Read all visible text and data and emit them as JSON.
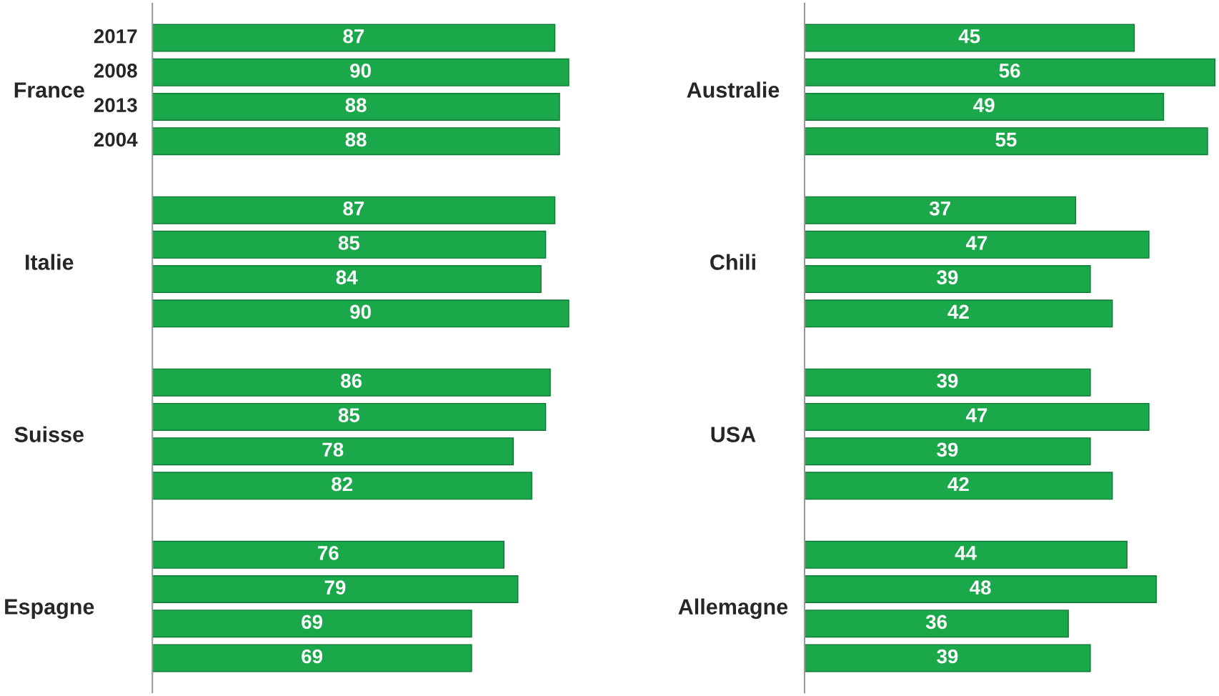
{
  "chart_data": [
    {
      "type": "bar",
      "orientation": "horizontal",
      "categories": [
        "France",
        "Italie",
        "Suisse",
        "Espagne"
      ],
      "data_labels": true,
      "tick_labels": "y",
      "series": [
        {
          "name": "2017",
          "color": "#1aa84a",
          "values": [
            87,
            87,
            86,
            76
          ]
        },
        {
          "name": "2008",
          "color": "#1aa84a",
          "values": [
            90,
            85,
            85,
            79
          ]
        },
        {
          "name": "2013",
          "color": "#1aa84a",
          "values": [
            88,
            84,
            78,
            69
          ]
        },
        {
          "name": "2004",
          "color": "#1aa84a",
          "values": [
            88,
            90,
            82,
            69
          ]
        }
      ]
    },
    {
      "type": "bar",
      "orientation": "horizontal",
      "categories": [
        "Australie",
        "Chili",
        "USA",
        "Allemagne"
      ],
      "data_labels": true,
      "tick_labels": "y",
      "series": [
        {
          "color": "#1aa84a",
          "values": [
            45,
            37,
            39,
            44
          ]
        },
        {
          "color": "#1aa84a",
          "values": [
            56,
            47,
            47,
            48
          ]
        },
        {
          "color": "#1aa84a",
          "values": [
            49,
            39,
            39,
            36
          ]
        },
        {
          "color": "#1aa84a",
          "values": [
            55,
            42,
            42,
            39
          ]
        }
      ]
    }
  ]
}
